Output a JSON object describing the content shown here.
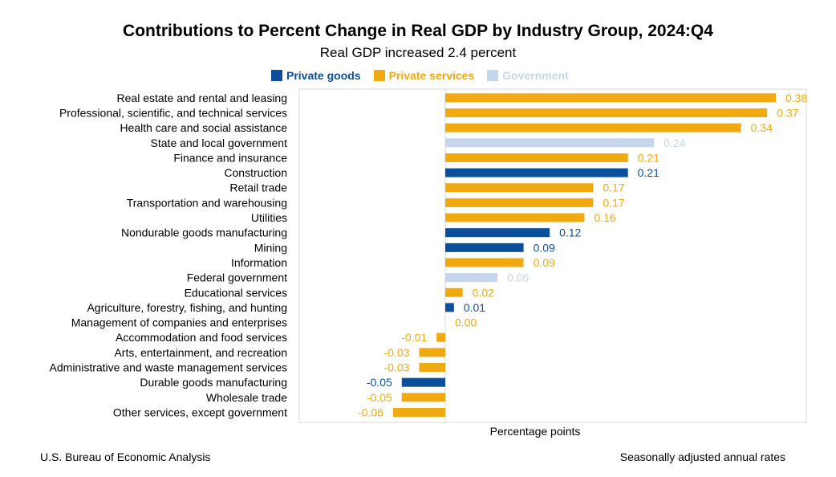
{
  "chart_data": {
    "type": "bar",
    "orientation": "horizontal",
    "title": "Contributions to Percent Change in Real GDP by Industry Group, 2024:Q4",
    "subtitle": "Real GDP increased 2.4 percent",
    "xlabel": "Percentage points",
    "xlim": [
      -0.1,
      0.4
    ],
    "legend_position": "top",
    "legend": [
      {
        "name": "Private goods",
        "color": "#0b4f9c"
      },
      {
        "name": "Private services",
        "color": "#f0a90f"
      },
      {
        "name": "Government",
        "color": "#c5d6ec"
      }
    ],
    "bars": [
      {
        "label": "Real estate and rental and leasing",
        "value": 0.38,
        "value_label": "0.38",
        "group": "Private services"
      },
      {
        "label": "Professional, scientific, and technical services",
        "value": 0.37,
        "value_label": "0.37",
        "group": "Private services"
      },
      {
        "label": "Health care and social assistance",
        "value": 0.34,
        "value_label": "0.34",
        "group": "Private services"
      },
      {
        "label": "State and local government",
        "value": 0.24,
        "value_label": "0.24",
        "group": "Government"
      },
      {
        "label": "Finance and insurance",
        "value": 0.21,
        "value_label": "0.21",
        "group": "Private services"
      },
      {
        "label": "Construction",
        "value": 0.21,
        "value_label": "0.21",
        "group": "Private goods"
      },
      {
        "label": "Retail trade",
        "value": 0.17,
        "value_label": "0.17",
        "group": "Private services"
      },
      {
        "label": "Transportation and warehousing",
        "value": 0.17,
        "value_label": "0.17",
        "group": "Private services"
      },
      {
        "label": "Utilities",
        "value": 0.16,
        "value_label": "0.16",
        "group": "Private services"
      },
      {
        "label": "Nondurable goods manufacturing",
        "value": 0.12,
        "value_label": "0.12",
        "group": "Private goods"
      },
      {
        "label": "Mining",
        "value": 0.09,
        "value_label": "0.09",
        "group": "Private goods"
      },
      {
        "label": "Information",
        "value": 0.09,
        "value_label": "0.09",
        "group": "Private services"
      },
      {
        "label": "Federal government",
        "value": 0.06,
        "value_label": "0.06",
        "group": "Government"
      },
      {
        "label": "Educational services",
        "value": 0.02,
        "value_label": "0.02",
        "group": "Private services"
      },
      {
        "label": "Agriculture, forestry, fishing, and hunting",
        "value": 0.01,
        "value_label": "0.01",
        "group": "Private goods"
      },
      {
        "label": "Management of companies and enterprises",
        "value": 0.0,
        "value_label": "0.00",
        "group": "Private services"
      },
      {
        "label": "Accommodation and food services",
        "value": -0.01,
        "value_label": "-0.01",
        "group": "Private services"
      },
      {
        "label": "Arts, entertainment, and recreation",
        "value": -0.03,
        "value_label": "-0.03",
        "group": "Private services"
      },
      {
        "label": "Administrative and waste management services",
        "value": -0.03,
        "value_label": "-0.03",
        "group": "Private services"
      },
      {
        "label": "Durable goods manufacturing",
        "value": -0.05,
        "value_label": "-0.05",
        "group": "Private goods"
      },
      {
        "label": "Wholesale trade",
        "value": -0.05,
        "value_label": "-0.05",
        "group": "Private services"
      },
      {
        "label": "Other services, except government",
        "value": -0.06,
        "value_label": "-0.06",
        "group": "Private services"
      }
    ],
    "grid": false
  },
  "footer": {
    "source": "U.S. Bureau of Economic Analysis",
    "note": "Seasonally adjusted annual rates"
  }
}
